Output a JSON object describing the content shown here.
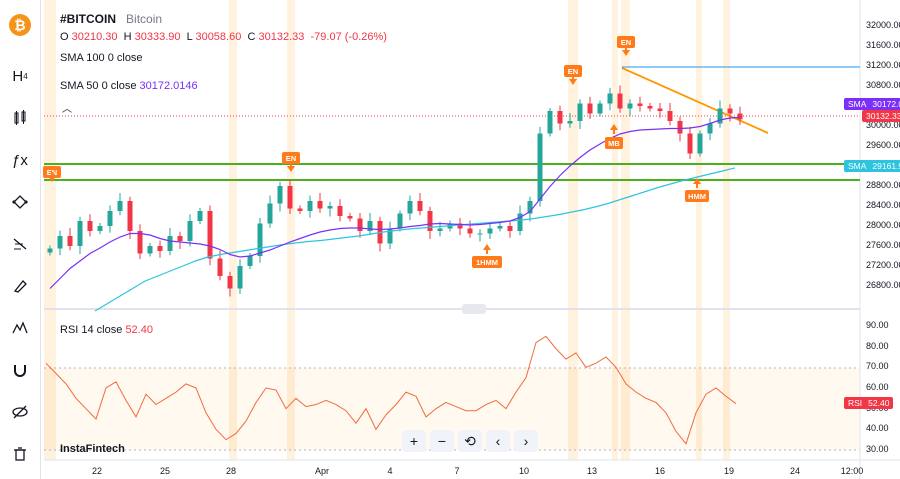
{
  "legend": {
    "symbol": "#BITCOIN",
    "name": "Bitcoin",
    "o_label": "O",
    "o": "30210.30",
    "h_label": "H",
    "h": "30333.90",
    "l_label": "L",
    "l": "30058.60",
    "c_label": "C",
    "c": "30132.33",
    "change": "-79.07 (-0.26%)",
    "sma100": "SMA 100 0 close",
    "sma50": "SMA 50 0 close",
    "sma50_value": "30172.0146",
    "rsi": "RSI 14 close",
    "rsi_value": "52.40"
  },
  "brand": "InstaFintech",
  "toolbar": {
    "items": [
      "logo-bitcoin-icon",
      "candles-icon",
      "bar-style-icon",
      "indicators-icon",
      "trend-line-icon",
      "fib-icon",
      "brush-icon",
      "pattern-icon",
      "magnet-icon",
      "hide-icon",
      "trash-icon"
    ]
  },
  "controls": {
    "zoom_in": "+",
    "zoom_out": "−",
    "reset": "⟲",
    "back": "‹",
    "forward": "›"
  },
  "price_axis": [
    "32000.00",
    "31600.00",
    "31200.00",
    "30800.00",
    "30400.00",
    "30000.00",
    "29600.00",
    "29200.00",
    "28800.00",
    "28400.00",
    "28000.00",
    "27600.00",
    "27200.00",
    "26800.00"
  ],
  "rsi_axis": [
    "90.00",
    "80.00",
    "70.00",
    "60.00",
    "50.00",
    "40.00",
    "30.00"
  ],
  "time_axis": [
    "22",
    "25",
    "28",
    "Apr",
    "4",
    "7",
    "10",
    "13",
    "16",
    "19",
    "24",
    "12:00"
  ],
  "tags": {
    "sma_name": "SMA",
    "sma_value": "30172.01",
    "close_value": "30132.33",
    "sma100_name": "SMA",
    "sma100_value": "29161.90",
    "rsi_name": "RSI",
    "rsi_value": "52.40"
  },
  "annotations": [
    {
      "text": "EN",
      "dir": "down"
    },
    {
      "text": "EN",
      "dir": "down"
    },
    {
      "text": "1HMM",
      "dir": "up"
    },
    {
      "text": "EN",
      "dir": "down"
    },
    {
      "text": "EN",
      "dir": "down"
    },
    {
      "text": "MB",
      "dir": "up"
    },
    {
      "text": "HMM",
      "dir": "up"
    }
  ],
  "colors": {
    "up": "#26a69a",
    "down": "#f23645",
    "sma50": "#7b2ff7",
    "sma100": "#2ec4e0",
    "support": "#4caf20",
    "trend": "#ff9800",
    "marker": "#ff7a1a"
  },
  "chart_data": {
    "type": "line",
    "title": "#BITCOIN",
    "ylim": [
      26400,
      32200
    ],
    "series": [
      {
        "name": "close",
        "values": [
          27550,
          27800,
          27600,
          28100,
          27900,
          28000,
          28300,
          28500,
          27900,
          27450,
          27600,
          27500,
          27800,
          27700,
          28100,
          28300,
          27350,
          27000,
          26750,
          27200,
          27400,
          28050,
          28450,
          28800,
          28350,
          28300,
          28500,
          28350,
          28400,
          28200,
          28150,
          27900,
          28100,
          27650,
          27950,
          28250,
          28500,
          28300,
          27900,
          27950,
          28050,
          27950,
          27850,
          27850,
          27950,
          28000,
          27900,
          28250,
          28500,
          29850,
          30300,
          30050,
          30100,
          30450,
          30250,
          30450,
          30650,
          30350,
          30450,
          30400,
          30350,
          30300,
          30100,
          29850,
          29450,
          29850,
          30050,
          30350,
          30250,
          30132
        ]
      },
      {
        "name": "SMA 50",
        "values": [
          26750,
          26950,
          27150,
          27300,
          27450,
          27560,
          27680,
          27780,
          27850,
          27850,
          27820,
          27750,
          27700,
          27680,
          27660,
          27640,
          27600,
          27530,
          27430,
          27380,
          27400,
          27460,
          27520,
          27600,
          27680,
          27750,
          27820,
          27880,
          27920,
          27950,
          27960,
          27960,
          27940,
          27930,
          27940,
          27960,
          27990,
          28010,
          28040,
          28050,
          28040,
          28030,
          28020,
          28030,
          28050,
          28070,
          28100,
          28170,
          28290,
          28540,
          28790,
          29010,
          29200,
          29370,
          29520,
          29640,
          29750,
          29840,
          29890,
          29920,
          29930,
          29940,
          29950,
          29950,
          29960,
          29990,
          30050,
          30120,
          30160,
          30172
        ]
      },
      {
        "name": "SMA 100",
        "values": [
          26300,
          26450,
          26600,
          26750,
          26900,
          27000,
          27100,
          27200,
          27300,
          27380,
          27430,
          27470,
          27510,
          27550,
          27590,
          27630,
          27660,
          27690,
          27710,
          27740,
          27770,
          27800,
          27840,
          27880,
          27910,
          27940,
          27960,
          27980,
          28000,
          28020,
          28040,
          28060,
          28080,
          28100,
          28120,
          28150,
          28190,
          28230,
          28280,
          28330,
          28390,
          28460,
          28540,
          28620,
          28700,
          28780,
          28850,
          28920,
          28980,
          29040,
          29100,
          29161
        ]
      },
      {
        "name": "RSI 14",
        "values": [
          72,
          67,
          62,
          55,
          50,
          45,
          60,
          63,
          54,
          46,
          57,
          52,
          55,
          58,
          62,
          60,
          48,
          40,
          35,
          38,
          44,
          53,
          60,
          59,
          50,
          55,
          51,
          52,
          54,
          52,
          49,
          43,
          50,
          40,
          47,
          52,
          58,
          56,
          46,
          50,
          53,
          51,
          49,
          49,
          52,
          54,
          50,
          58,
          65,
          82,
          85,
          79,
          74,
          77,
          70,
          72,
          75,
          70,
          62,
          58,
          55,
          53,
          48,
          39,
          33,
          48,
          57,
          60,
          56,
          52.4
        ]
      }
    ]
  }
}
